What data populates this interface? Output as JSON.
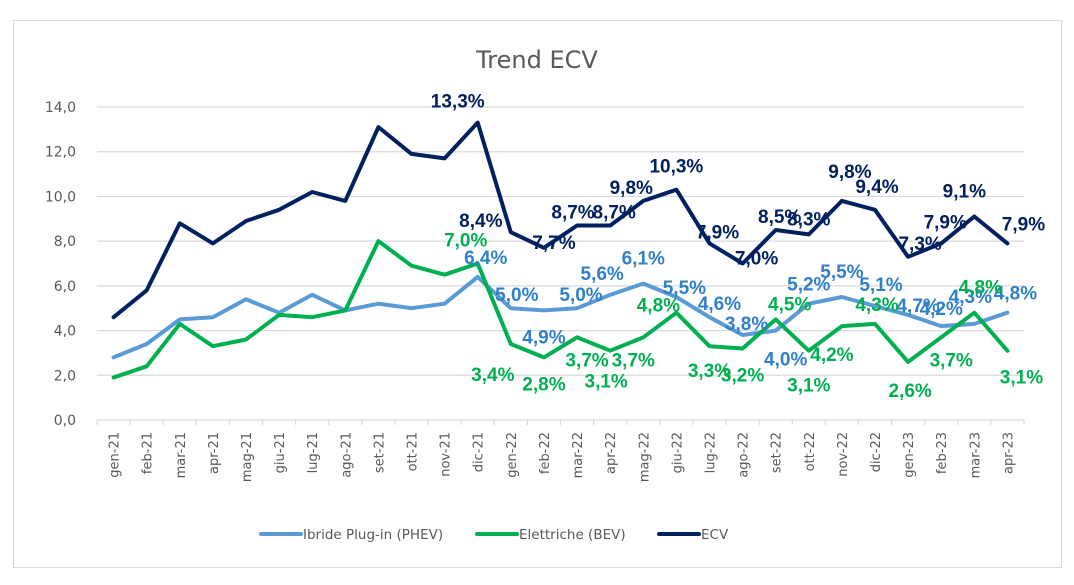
{
  "chart_data": {
    "type": "line",
    "title": "Trend ECV",
    "xlabel": "",
    "ylabel": "",
    "ylim": [
      0,
      14
    ],
    "yticks": [
      "0,0",
      "2,0",
      "4,0",
      "6,0",
      "8,0",
      "10,0",
      "12,0",
      "14,0"
    ],
    "ytick_values": [
      0,
      2,
      4,
      6,
      8,
      10,
      12,
      14
    ],
    "grid": true,
    "legend_position": "bottom",
    "categories": [
      "gen-21",
      "feb-21",
      "mar-21",
      "apr-21",
      "mag-21",
      "giu-21",
      "lug-21",
      "ago-21",
      "set-21",
      "ott-21",
      "nov-21",
      "dic-21",
      "gen-22",
      "feb-22",
      "mar-22",
      "apr-22",
      "mag-22",
      "giu-22",
      "lug-22",
      "ago-22",
      "set-22",
      "ott-22",
      "nov-22",
      "dic-22",
      "gen-23",
      "feb-23",
      "mar-23",
      "apr-23"
    ],
    "series": [
      {
        "name": "Ibride Plug-in (PHEV)",
        "color": "#5b9bd5",
        "label_color": "#2f7fc9",
        "values": [
          2.8,
          3.4,
          4.5,
          4.6,
          5.4,
          4.8,
          5.6,
          4.9,
          5.2,
          5.0,
          5.2,
          6.4,
          5.0,
          4.9,
          5.0,
          5.6,
          6.1,
          5.5,
          4.6,
          3.8,
          4.0,
          5.2,
          5.5,
          5.1,
          4.7,
          4.2,
          4.3,
          4.8
        ],
        "labels": [
          "",
          "",
          "",
          "",
          "",
          "",
          "",
          "",
          "",
          "",
          "",
          "6,4%",
          "5,0%",
          "4,9%",
          "5,0%",
          "5,6%",
          "6,1%",
          "5,5%",
          "4,6%",
          "3,8%",
          "4,0%",
          "5,2%",
          "5,5%",
          "5,1%",
          "4,7%",
          "4,2%",
          "4,3%",
          "4,8%"
        ]
      },
      {
        "name": "Elettriche (BEV)",
        "color": "#00b050",
        "label_color": "#00b050",
        "values": [
          1.9,
          2.4,
          4.3,
          3.3,
          3.6,
          4.7,
          4.6,
          4.9,
          8.0,
          6.9,
          6.5,
          7.0,
          3.4,
          2.8,
          3.7,
          3.1,
          3.7,
          4.8,
          3.3,
          3.2,
          4.5,
          3.1,
          4.2,
          4.3,
          2.6,
          3.7,
          4.8,
          3.1
        ],
        "labels": [
          "",
          "",
          "",
          "",
          "",
          "",
          "",
          "",
          "",
          "",
          "",
          "7,0%",
          "3,4%",
          "2,8%",
          "3,7%",
          "3,1%",
          "3,7%",
          "4,8%",
          "3,3%",
          "3,2%",
          "4,5%",
          "3,1%",
          "4,2%",
          "4,3%",
          "2,6%",
          "3,7%",
          "4,8%",
          "3,1%"
        ]
      },
      {
        "name": "ECV",
        "color": "#002060",
        "label_color": "#002060",
        "values": [
          4.6,
          5.8,
          8.8,
          7.9,
          8.9,
          9.4,
          10.2,
          9.8,
          13.1,
          11.9,
          11.7,
          13.3,
          8.4,
          7.7,
          8.7,
          8.7,
          9.8,
          10.3,
          7.9,
          7.0,
          8.5,
          8.3,
          9.8,
          9.4,
          7.3,
          7.9,
          9.1,
          7.9
        ],
        "labels": [
          "",
          "",
          "",
          "",
          "",
          "",
          "",
          "",
          "",
          "",
          "",
          "13,3%",
          "8,4%",
          "7,7%",
          "8,7%",
          "8,7%",
          "9,8%",
          "10,3%",
          "7,9%",
          "7,0%",
          "8,5%",
          "8,3%",
          "9,8%",
          "9,4%",
          "7,3%",
          "7,9%",
          "9,1%",
          "7,9%"
        ]
      }
    ]
  }
}
